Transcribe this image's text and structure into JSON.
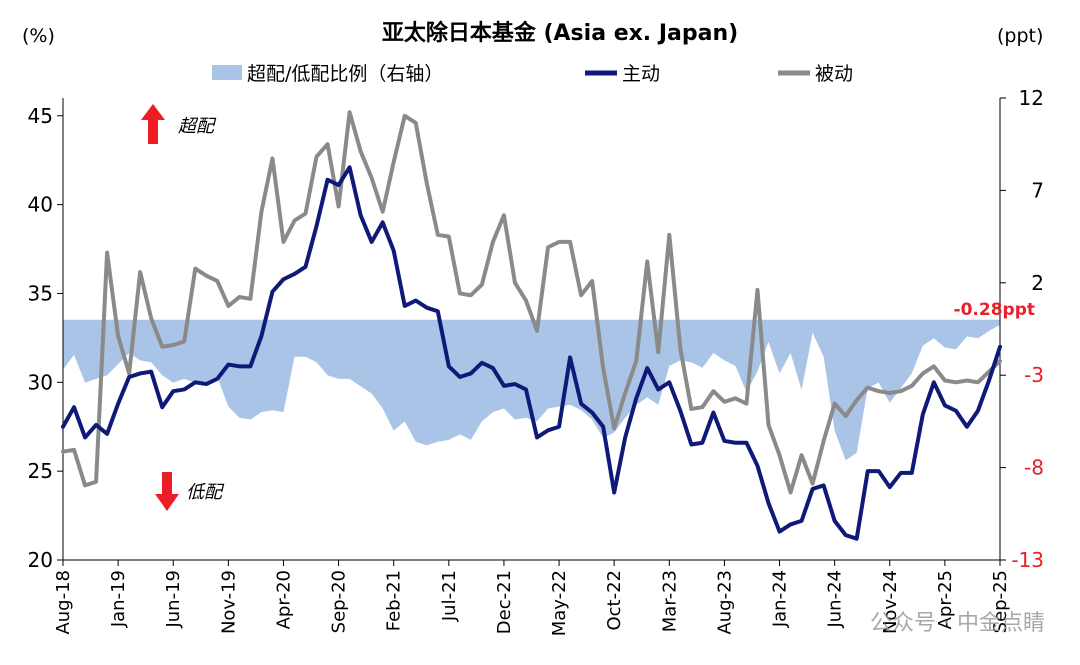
{
  "chart_data": {
    "type": "line",
    "title": "亚太除日本基金 (Asia ex. Japan)",
    "left_unit": "(%)",
    "right_unit": "(ppt)",
    "left_axis": {
      "min": 20,
      "max": 46,
      "ticks": [
        20,
        25,
        30,
        35,
        40,
        45
      ]
    },
    "right_axis": {
      "min": -13,
      "max": 12,
      "ticks": [
        -13,
        -8,
        -3,
        2,
        7,
        12
      ]
    },
    "legend": [
      "超配/低配比例（右轴）",
      "主动",
      "被动"
    ],
    "annotations": {
      "overweight": "超配",
      "underweight": "低配",
      "end_value": "-0.28ppt"
    },
    "x_tick_labels": [
      "Aug-18",
      "Jan-19",
      "Jun-19",
      "Nov-19",
      "Apr-20",
      "Sep-20",
      "Feb-21",
      "Jul-21",
      "Dec-21",
      "May-22",
      "Oct-22",
      "Mar-23",
      "Aug-23",
      "Jan-24",
      "Jun-24",
      "Nov-24",
      "Apr-25",
      "Sep-25"
    ],
    "x_tick_index": [
      0,
      5,
      10,
      15,
      20,
      25,
      30,
      35,
      40,
      45,
      50,
      55,
      60,
      65,
      70,
      75,
      80,
      85
    ],
    "series": [
      {
        "name": "主动",
        "axis": "left",
        "color": "#0f1a78",
        "values": [
          27.5,
          28.6,
          26.9,
          27.6,
          27.1,
          28.8,
          30.3,
          30.5,
          30.6,
          28.6,
          29.5,
          29.6,
          30.0,
          29.9,
          30.2,
          31.0,
          30.9,
          30.9,
          32.6,
          35.1,
          35.8,
          36.1,
          36.5,
          38.8,
          41.4,
          41.1,
          42.1,
          39.4,
          37.9,
          39.0,
          37.4,
          34.3,
          34.6,
          34.2,
          34.0,
          30.9,
          30.3,
          30.5,
          31.1,
          30.8,
          29.8,
          29.9,
          29.6,
          26.9,
          27.3,
          27.5,
          31.4,
          28.8,
          28.3,
          27.5,
          23.8,
          26.9,
          29.1,
          30.8,
          29.6,
          30.0,
          28.4,
          26.5,
          26.6,
          28.3,
          26.7,
          26.6,
          26.6,
          25.3,
          23.2,
          21.6,
          22.0,
          22.2,
          24.0,
          24.2,
          22.2,
          21.4,
          21.2,
          25.0,
          25.0,
          24.1,
          24.9,
          24.9,
          28.2,
          30.0,
          28.7,
          28.4,
          27.5,
          28.4,
          30.1,
          32.0
        ]
      },
      {
        "name": "被动",
        "axis": "left",
        "color": "#8a8a8a",
        "values": [
          26.1,
          26.2,
          24.2,
          24.4,
          37.3,
          32.6,
          30.5,
          36.2,
          33.6,
          32.0,
          32.1,
          32.3,
          36.4,
          36.0,
          35.7,
          34.3,
          34.8,
          34.7,
          39.6,
          42.6,
          37.9,
          39.1,
          39.5,
          42.7,
          43.4,
          39.9,
          45.2,
          43.0,
          41.5,
          39.6,
          42.4,
          45.0,
          44.6,
          41.2,
          38.3,
          38.2,
          35.0,
          34.9,
          35.5,
          37.9,
          39.4,
          35.6,
          34.6,
          32.9,
          37.6,
          37.9,
          37.9,
          34.9,
          35.7,
          30.8,
          27.4,
          29.4,
          31.2,
          36.8,
          31.7,
          38.3,
          31.9,
          28.5,
          28.6,
          29.5,
          28.9,
          29.1,
          28.8,
          35.2,
          27.6,
          25.9,
          23.8,
          25.9,
          24.3,
          26.7,
          28.8,
          28.1,
          29.0,
          29.7,
          29.5,
          29.4,
          29.5,
          29.8,
          30.5,
          30.9,
          30.1,
          30.0,
          30.1,
          30.0,
          30.6,
          31.2
        ]
      },
      {
        "name": "超配/低配比例（右轴）",
        "axis": "right",
        "color": "#a9c4e6",
        "values": [
          -2.7,
          -1.9,
          -3.4,
          -3.2,
          -3.0,
          -2.4,
          -1.8,
          -2.2,
          -2.3,
          -3.0,
          -3.4,
          -3.2,
          -3.4,
          -3.5,
          -3.1,
          -4.7,
          -5.3,
          -5.4,
          -5.0,
          -4.9,
          -5.0,
          -2.0,
          -2.0,
          -2.3,
          -3.0,
          -3.2,
          -3.2,
          -3.6,
          -4.0,
          -4.8,
          -6.0,
          -5.5,
          -6.6,
          -6.8,
          -6.6,
          -6.5,
          -6.2,
          -6.5,
          -5.5,
          -5.0,
          -4.8,
          -5.4,
          -5.3,
          -5.5,
          -4.8,
          -4.7,
          -4.6,
          -4.9,
          -5.4,
          -6.4,
          -6.1,
          -5.3,
          -4.6,
          -4.2,
          -4.6,
          -2.5,
          -2.2,
          -2.3,
          -2.6,
          -1.8,
          -2.2,
          -2.5,
          -3.9,
          -2.8,
          -1.2,
          -2.9,
          -1.8,
          -3.8,
          -0.7,
          -2.0,
          -6.0,
          -7.6,
          -7.2,
          -3.7,
          -3.4,
          -4.5,
          -3.7,
          -2.9,
          -1.4,
          -1.0,
          -1.5,
          -1.6,
          -0.9,
          -1.0,
          -0.6,
          -0.28
        ]
      }
    ]
  },
  "watermark": "公众号 · 中金点睛"
}
